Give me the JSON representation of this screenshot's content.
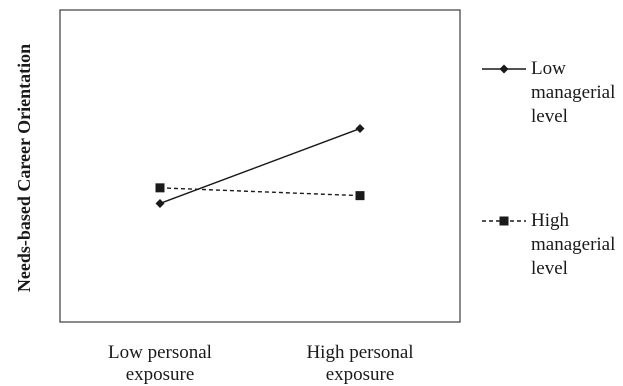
{
  "chart_data": {
    "type": "line",
    "title": "",
    "xlabel": "",
    "ylabel": "Needs-based Career Orientation",
    "categories": [
      [
        "Low personal",
        "exposure"
      ],
      [
        "High personal",
        "exposure"
      ]
    ],
    "ylim": [
      0,
      10
    ],
    "grid": false,
    "legend_position": "right",
    "series": [
      {
        "name": [
          "Low",
          "managerial",
          "level"
        ],
        "values": [
          3.8,
          6.2
        ],
        "line_style": "solid",
        "marker": "diamond",
        "color": "#1a1a1a"
      },
      {
        "name": [
          "High",
          "managerial",
          "level"
        ],
        "values": [
          4.3,
          4.05
        ],
        "line_style": "dashed",
        "marker": "square",
        "color": "#1a1a1a"
      }
    ]
  }
}
